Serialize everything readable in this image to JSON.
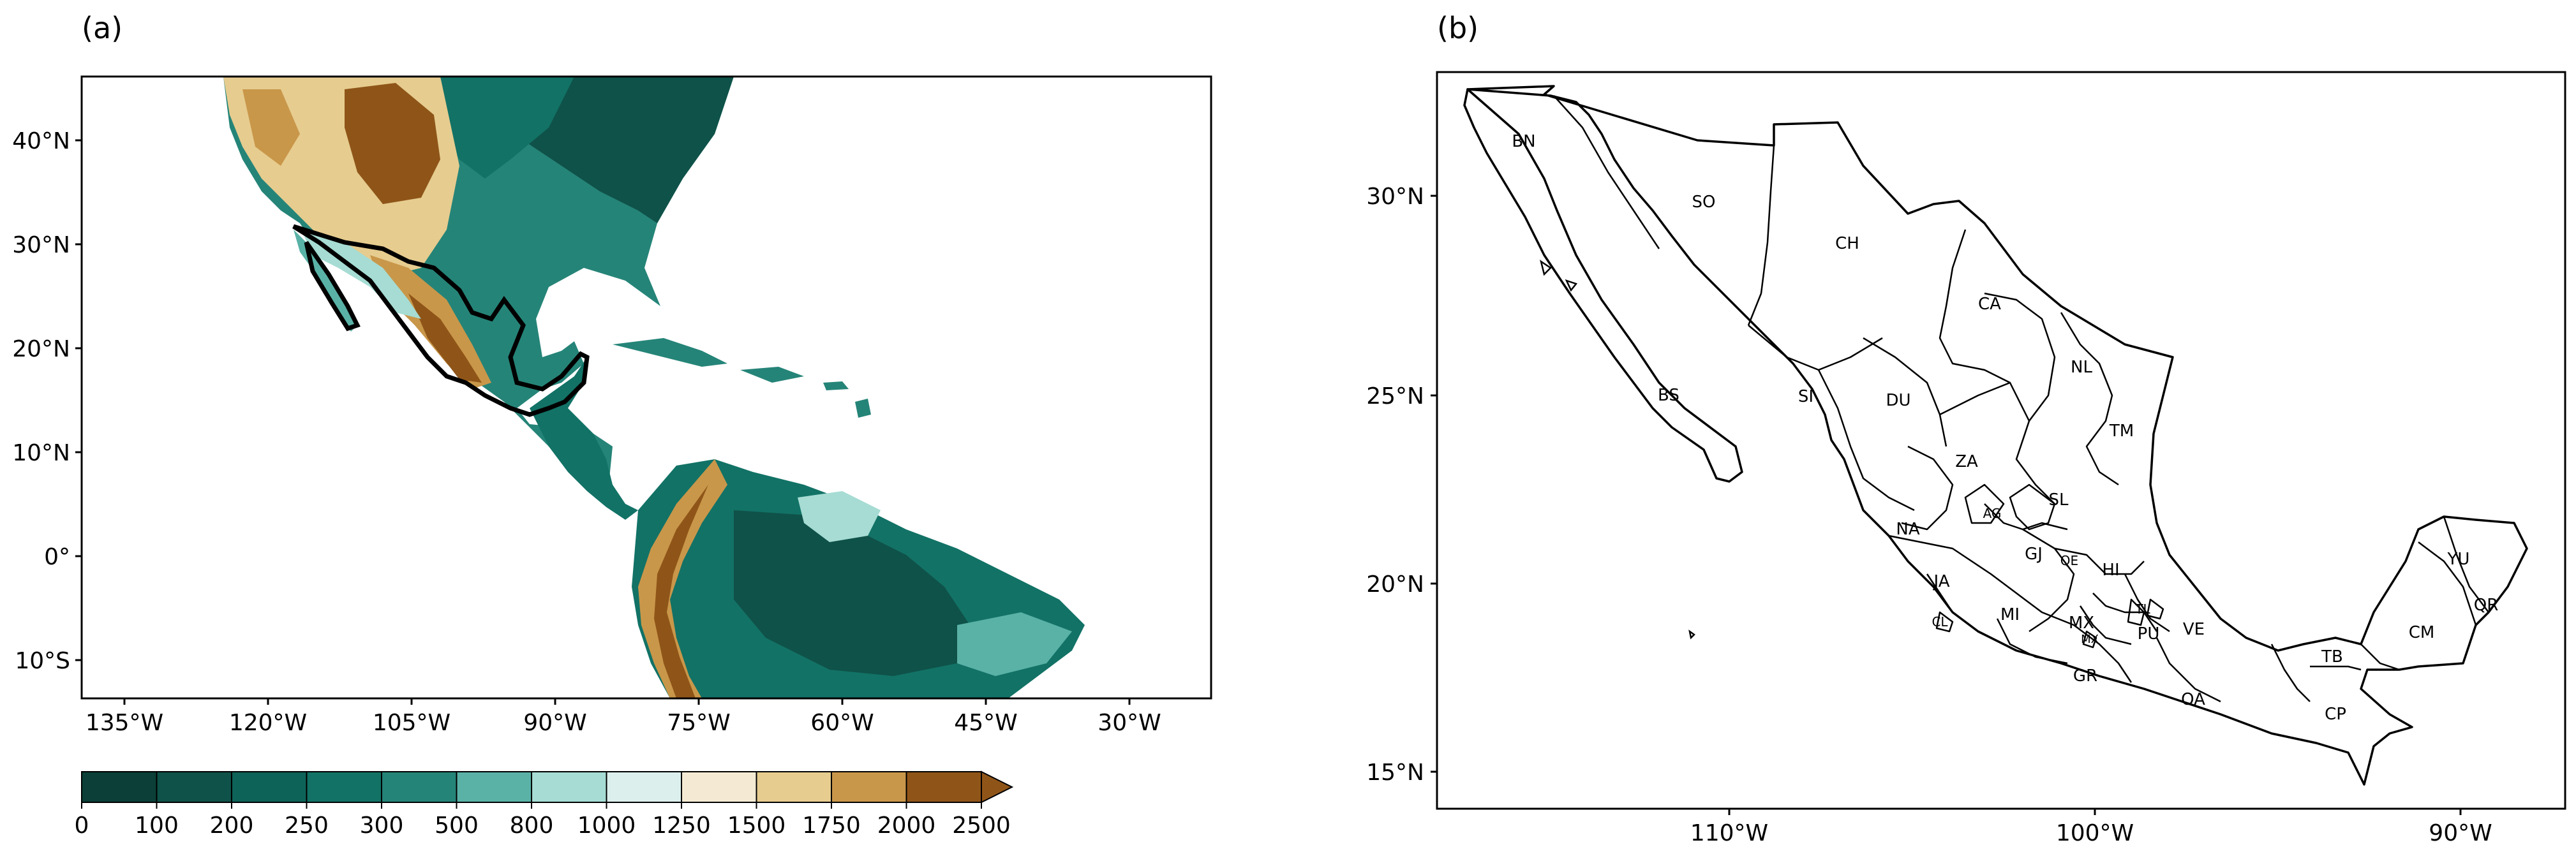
{
  "panel_a": {
    "label": "(a)",
    "lat_ticks": [
      "40°N",
      "30°N",
      "20°N",
      "10°N",
      "0°",
      "10°S"
    ],
    "lon_ticks": [
      "135°W",
      "120°W",
      "105°W",
      "90°W",
      "75°W",
      "60°W",
      "45°W",
      "30°W"
    ],
    "colorbar": {
      "ticks": [
        "0",
        "100",
        "200",
        "250",
        "300",
        "500",
        "800",
        "1000",
        "1250",
        "1500",
        "1750",
        "2000",
        "2500"
      ],
      "colors": [
        "#0b3f37",
        "#0f5249",
        "#0e6358",
        "#127266",
        "#258478",
        "#5ab2a7",
        "#a6dcd3",
        "#dcefec",
        "#f4ead3",
        "#e6cc8f",
        "#c9974a",
        "#8f5518"
      ]
    }
  },
  "panel_b": {
    "label": "(b)",
    "lat_ticks": [
      "30°N",
      "25°N",
      "20°N",
      "15°N"
    ],
    "lon_ticks": [
      "110°W",
      "100°W",
      "90°W"
    ],
    "states": [
      "BN",
      "SO",
      "CH",
      "CA",
      "NL",
      "BS",
      "SI",
      "DU",
      "TM",
      "ZA",
      "SL",
      "NA",
      "AG",
      "GJ",
      "QE",
      "HI",
      "JA",
      "MI",
      "MX",
      "TL",
      "PU",
      "VE",
      "CL",
      "MX",
      "GR",
      "OA",
      "TB",
      "CP",
      "CM",
      "YU",
      "QR"
    ]
  }
}
